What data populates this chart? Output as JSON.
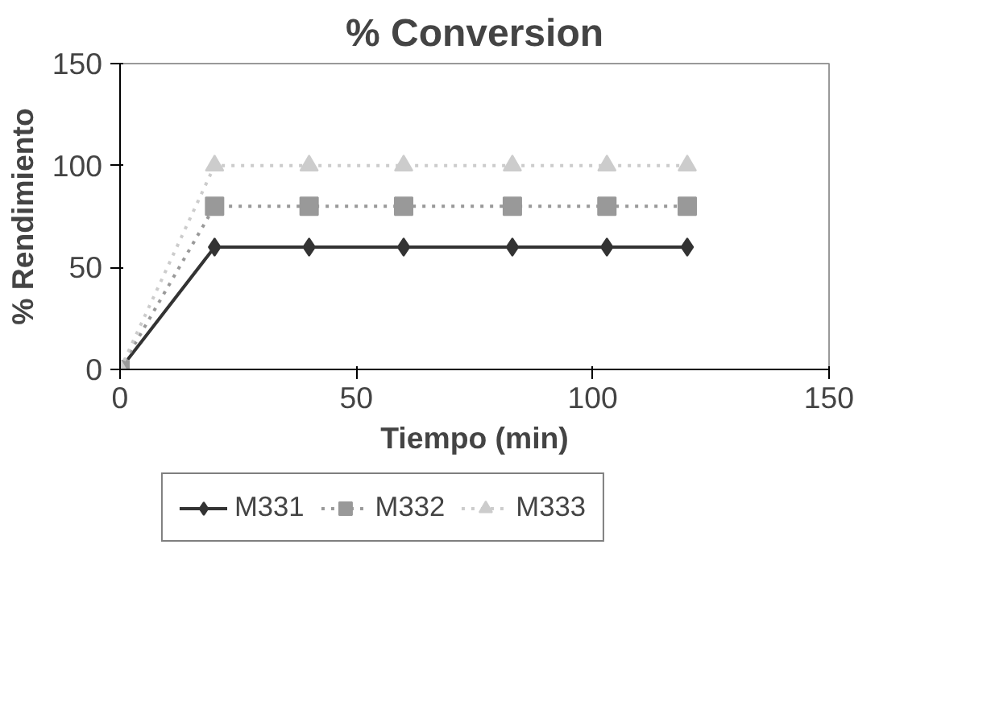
{
  "chart_data": {
    "type": "line",
    "title": "% Conversion",
    "xlabel": "Tiempo (min)",
    "ylabel": "% Rendimiento",
    "xlim": [
      0,
      150
    ],
    "xticks": [
      0,
      50,
      100,
      150
    ],
    "ylim": [
      0,
      150
    ],
    "yticks": [
      0,
      50,
      100,
      150
    ],
    "grid": false,
    "legend": "bottom",
    "series": [
      {
        "name": "M331",
        "color": "#333333",
        "marker": "diamond",
        "line_style": "solid",
        "x": [
          0,
          20,
          40,
          60,
          83,
          103,
          120
        ],
        "values": [
          0,
          60,
          60,
          60,
          60,
          60,
          60
        ]
      },
      {
        "name": "M332",
        "color": "#999999",
        "marker": "square",
        "line_style": "dotted",
        "x": [
          0,
          20,
          40,
          60,
          83,
          103,
          120
        ],
        "values": [
          0,
          80,
          80,
          80,
          80,
          80,
          80
        ]
      },
      {
        "name": "M333",
        "color": "#cccccc",
        "marker": "triangle",
        "line_style": "dotted",
        "x": [
          0,
          20,
          40,
          60,
          83,
          103,
          120
        ],
        "values": [
          0,
          100,
          100,
          100,
          100,
          100,
          100
        ]
      }
    ]
  }
}
